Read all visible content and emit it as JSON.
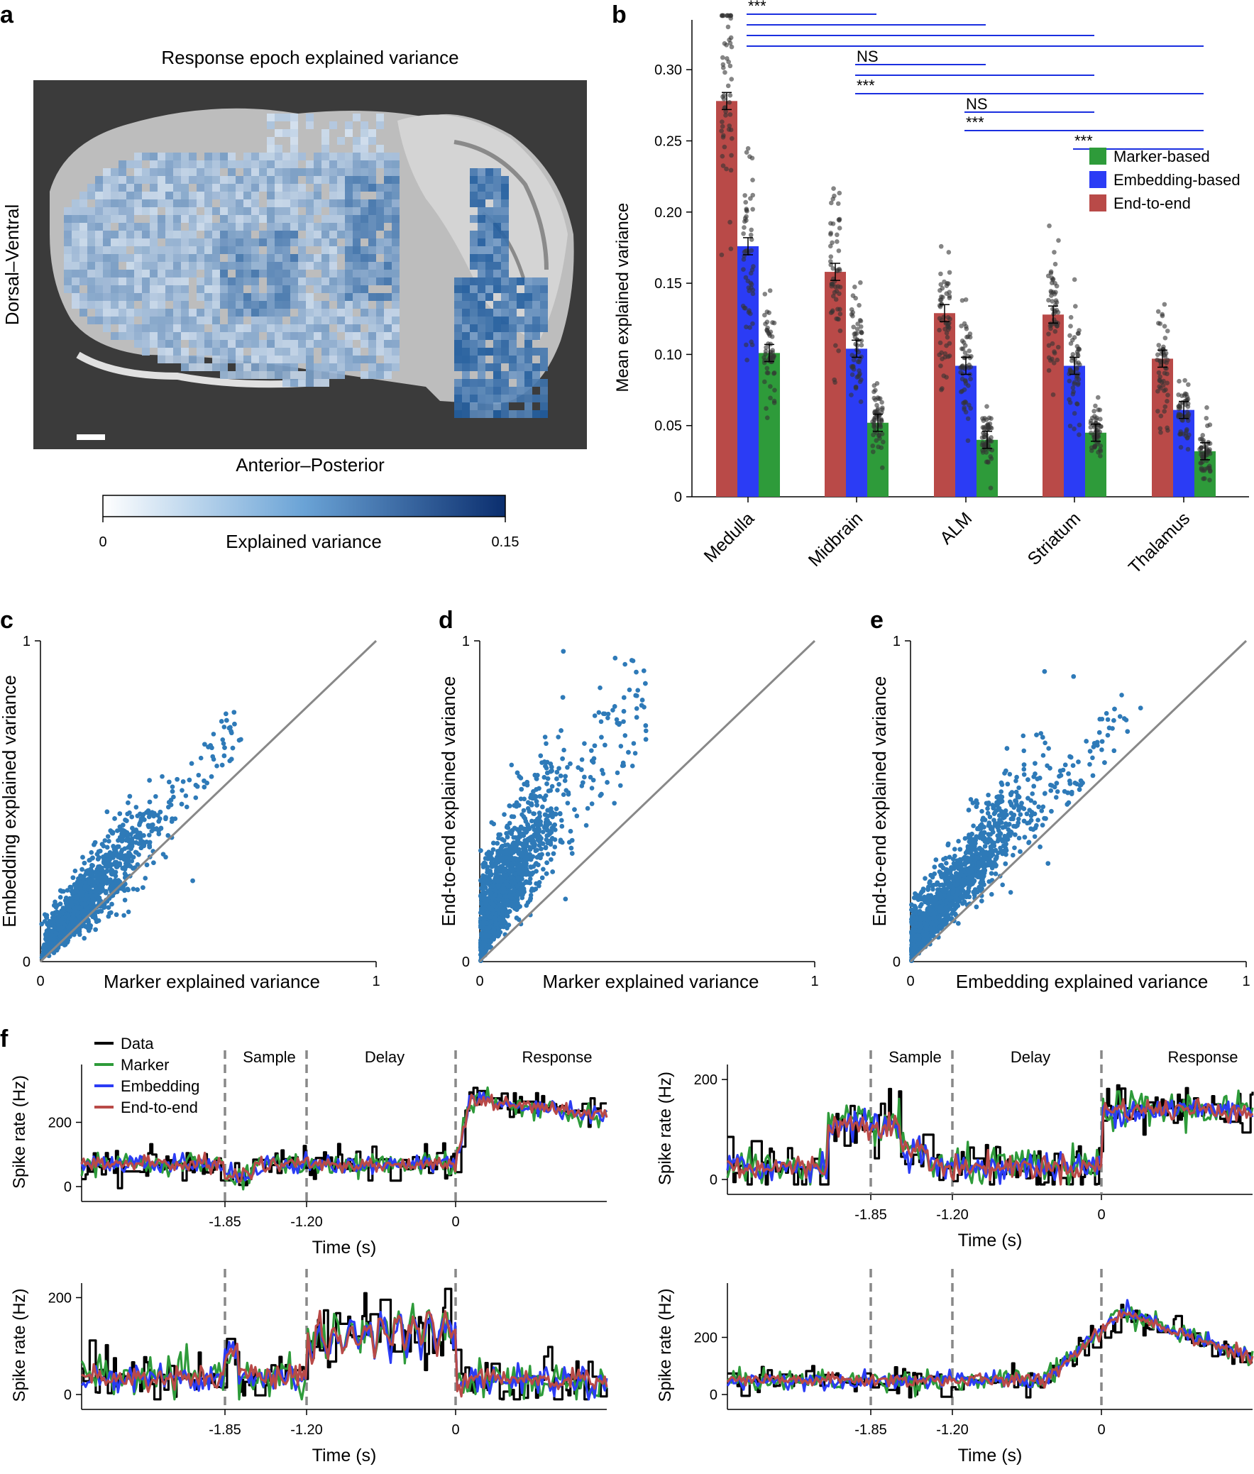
{
  "panels": {
    "a": "a",
    "b": "b",
    "c": "c",
    "d": "d",
    "e": "e",
    "f": "f"
  },
  "colors": {
    "marker": "#2e9b3a",
    "embedding": "#2b3cf5",
    "endtoend": "#b94a48",
    "scatter": "#2e7ab8",
    "data": "#000000",
    "dashed": "#888888"
  },
  "panel_a": {
    "title": "Response epoch explained variance",
    "ylabel": "Dorsal–Ventral",
    "xlabel": "Anterior–Posterior",
    "colorbar": {
      "label": "Explained variance",
      "min_label": "0",
      "max_label": "0.15",
      "min": 0,
      "max": 0.15
    }
  },
  "chart_data": [
    {
      "id": "b",
      "type": "bar",
      "ylabel": "Mean explained variance",
      "ylim": [
        0,
        0.335
      ],
      "yticks": [
        "0",
        "0.05",
        "0.10",
        "0.15",
        "0.20",
        "0.25",
        "0.30"
      ],
      "categories": [
        "Medulla",
        "Midbrain",
        "ALM",
        "Striatum",
        "Thalamus"
      ],
      "series": [
        {
          "name": "End-to-end",
          "values": [
            0.278,
            0.158,
            0.129,
            0.128,
            0.097
          ]
        },
        {
          "name": "Embedding-based",
          "values": [
            0.176,
            0.104,
            0.092,
            0.092,
            0.061
          ]
        },
        {
          "name": "Marker-based",
          "values": [
            0.101,
            0.052,
            0.04,
            0.045,
            0.032
          ]
        }
      ],
      "legend": [
        "Marker-based",
        "Embedding-based",
        "End-to-end"
      ],
      "legend_position": "top-right",
      "significance": [
        {
          "from": "Medulla",
          "to": [
            "Midbrain",
            "ALM",
            "Striatum",
            "Thalamus"
          ],
          "label": "***"
        },
        {
          "from": "Midbrain",
          "to": [
            "ALM",
            "Striatum"
          ],
          "label": "NS"
        },
        {
          "from": "Midbrain",
          "to": [
            "Thalamus"
          ],
          "label": "***"
        },
        {
          "from": "ALM",
          "to": [
            "Striatum"
          ],
          "label": "NS"
        },
        {
          "from": "ALM",
          "to": [
            "Thalamus"
          ],
          "label": "***"
        },
        {
          "from": "Striatum",
          "to": [
            "Thalamus"
          ],
          "label": "***"
        }
      ]
    },
    {
      "id": "c",
      "type": "scatter",
      "xlabel": "Marker explained variance",
      "ylabel": "Embedding explained variance",
      "xlim": [
        0,
        1
      ],
      "ylim": [
        0,
        1
      ],
      "ticks": [
        "0",
        "1"
      ],
      "identity_line": true
    },
    {
      "id": "d",
      "type": "scatter",
      "xlabel": "Marker explained variance",
      "ylabel": "End-to-end explained variance",
      "xlim": [
        0,
        1
      ],
      "ylim": [
        0,
        1
      ],
      "ticks": [
        "0",
        "1"
      ],
      "identity_line": true
    },
    {
      "id": "e",
      "type": "scatter",
      "xlabel": "Embedding explained variance",
      "ylabel": "End-to-end explained variance",
      "xlim": [
        0,
        1
      ],
      "ylim": [
        0,
        1
      ],
      "ticks": [
        "0",
        "1"
      ],
      "identity_line": true
    },
    {
      "id": "f",
      "type": "line",
      "xlabel": "Time (s)",
      "ylabel": "Spike rate (Hz)",
      "xticks": [
        "-1.85",
        "-1.20",
        "0"
      ],
      "epochs": [
        "Sample",
        "Delay",
        "Response"
      ],
      "legend": [
        "Data",
        "Marker",
        "Embedding",
        "End-to-end"
      ],
      "subplots": [
        {
          "yticks": [
            "0",
            "200"
          ]
        },
        {
          "yticks": [
            "0",
            "200"
          ]
        },
        {
          "yticks": [
            "0",
            "200"
          ]
        },
        {
          "yticks": [
            "0",
            "200"
          ]
        }
      ]
    }
  ]
}
